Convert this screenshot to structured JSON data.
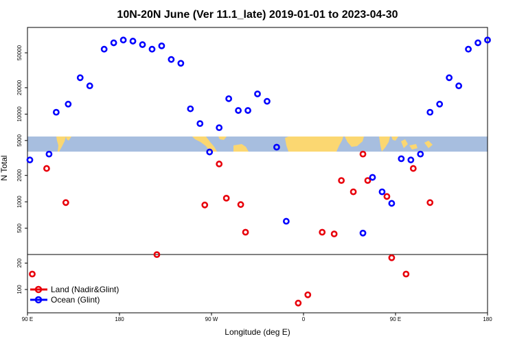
{
  "chart_data": {
    "type": "scatter",
    "title": "10N-20N June (Ver 11.1_late)   2019-01-01 to 2023-04-30",
    "xlabel": "Longitude (deg E)",
    "ylabel": "N Total",
    "y_scale": "log",
    "x_ticks": [
      "90 E",
      "180",
      "90 W",
      "0",
      "90 E",
      "180"
    ],
    "y_ticks": [
      "100",
      "200",
      "500",
      "1000",
      "2000",
      "5000",
      "10000",
      "20000",
      "50000"
    ],
    "x_range": [
      "90 E",
      "180"
    ],
    "legend": {
      "position": "bottom-left"
    },
    "series": [
      {
        "name": "Land (Nadir&Glint)",
        "color": "#e8000b",
        "points": [
          {
            "x": 1,
            "y": 150
          },
          {
            "x": 4,
            "y": 2400
          },
          {
            "x": 8,
            "y": 980
          },
          {
            "x": 27,
            "y": 250
          },
          {
            "x": 37,
            "y": 920
          },
          {
            "x": 40,
            "y": 2700
          },
          {
            "x": 41.5,
            "y": 1100
          },
          {
            "x": 44.5,
            "y": 930
          },
          {
            "x": 45.5,
            "y": 450
          },
          {
            "x": 56.5,
            "y": 70
          },
          {
            "x": 58.5,
            "y": 87
          },
          {
            "x": 61.5,
            "y": 450
          },
          {
            "x": 64,
            "y": 430
          },
          {
            "x": 65.5,
            "y": 1750
          },
          {
            "x": 68,
            "y": 1300
          },
          {
            "x": 70,
            "y": 3500
          },
          {
            "x": 71,
            "y": 1750
          },
          {
            "x": 75,
            "y": 1150
          },
          {
            "x": 76,
            "y": 230
          },
          {
            "x": 79,
            "y": 150
          },
          {
            "x": 80.5,
            "y": 2400
          },
          {
            "x": 84,
            "y": 980
          }
        ]
      },
      {
        "name": "Ocean (Glint)",
        "color": "#0000ff",
        "points": [
          {
            "x": 0.5,
            "y": 3000
          },
          {
            "x": 4.5,
            "y": 3500
          },
          {
            "x": 6,
            "y": 10500
          },
          {
            "x": 8.5,
            "y": 13000
          },
          {
            "x": 11,
            "y": 26000
          },
          {
            "x": 13,
            "y": 21000
          },
          {
            "x": 16,
            "y": 55000
          },
          {
            "x": 18,
            "y": 65000
          },
          {
            "x": 20,
            "y": 70000
          },
          {
            "x": 22,
            "y": 68000
          },
          {
            "x": 24,
            "y": 62000
          },
          {
            "x": 26,
            "y": 55000
          },
          {
            "x": 28,
            "y": 60000
          },
          {
            "x": 30,
            "y": 42000
          },
          {
            "x": 32,
            "y": 38000
          },
          {
            "x": 34,
            "y": 11500
          },
          {
            "x": 36,
            "y": 7800
          },
          {
            "x": 38,
            "y": 3700
          },
          {
            "x": 40,
            "y": 7000
          },
          {
            "x": 42,
            "y": 15000
          },
          {
            "x": 44,
            "y": 11000
          },
          {
            "x": 46,
            "y": 11000
          },
          {
            "x": 48,
            "y": 17000
          },
          {
            "x": 50,
            "y": 14000
          },
          {
            "x": 52,
            "y": 4200
          },
          {
            "x": 54,
            "y": 600
          },
          {
            "x": 70,
            "y": 440
          },
          {
            "x": 72,
            "y": 1900
          },
          {
            "x": 74,
            "y": 1300
          },
          {
            "x": 76,
            "y": 960
          },
          {
            "x": 78,
            "y": 3100
          },
          {
            "x": 80,
            "y": 3000
          },
          {
            "x": 82,
            "y": 3500
          },
          {
            "x": 84,
            "y": 10500
          },
          {
            "x": 86,
            "y": 13000
          },
          {
            "x": 88,
            "y": 26000
          },
          {
            "x": 90,
            "y": 21000
          },
          {
            "x": 92,
            "y": 55000
          },
          {
            "x": 94,
            "y": 65000
          },
          {
            "x": 96,
            "y": 70000
          }
        ]
      }
    ]
  }
}
